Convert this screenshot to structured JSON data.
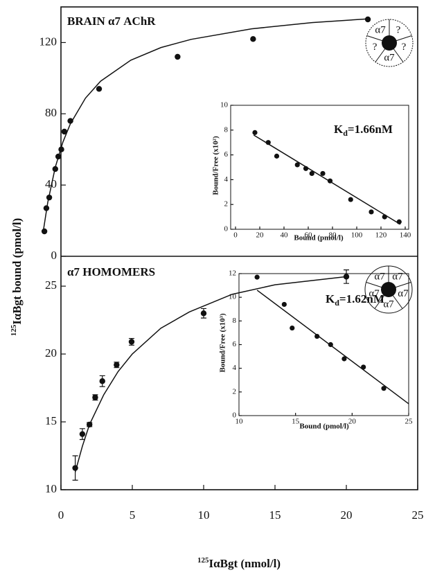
{
  "x_label": {
    "sup": "125",
    "text": "IαBgt (nmol/l)"
  },
  "y_label": {
    "sup": "125",
    "text": "IαBgt bound (pmol/l)"
  },
  "chart_data": [
    {
      "type": "scatter",
      "title": "BRAIN α7 AChR",
      "subunits": [
        "α7",
        "?",
        "?",
        "α7",
        "?"
      ],
      "color": "#111111",
      "x": [
        0.28,
        0.41,
        0.6,
        1.0,
        1.2,
        1.4,
        1.6,
        2.0,
        3.9,
        9.1,
        14.1,
        21.7
      ],
      "y": [
        14,
        27,
        33,
        49,
        56,
        60,
        70,
        76,
        94,
        112,
        122,
        133
      ],
      "fit": {
        "x": [
          0.2,
          0.5,
          1,
          1.5,
          2,
          3,
          4,
          6,
          8,
          10,
          14,
          18,
          21.7
        ],
        "y": [
          13.8,
          30.2,
          50,
          64,
          74.4,
          88.8,
          98.3,
          110.1,
          117.2,
          121.8,
          127.7,
          131.2,
          133.3
        ]
      },
      "xlim": [
        0,
        25
      ],
      "ylim": [
        0,
        140
      ],
      "yticks": [
        0,
        40,
        80,
        120
      ]
    },
    {
      "type": "scatter",
      "annotation": [
        "K",
        "d",
        "=1.66nM"
      ],
      "x_label": "Bound (pmol/l)",
      "y_label": "Bound/Free (x10²)",
      "color": "#111111",
      "x": [
        16,
        27,
        34,
        51,
        58,
        63,
        72,
        78,
        95,
        112,
        123,
        135
      ],
      "y": [
        7.8,
        7.0,
        5.9,
        5.2,
        4.9,
        4.5,
        4.5,
        3.9,
        2.4,
        1.4,
        1.0,
        0.6
      ],
      "fit": {
        "x": [
          15,
          136
        ],
        "y": [
          7.6,
          0.4
        ]
      },
      "xlim": [
        0,
        140
      ],
      "xticks": [
        0,
        20,
        40,
        60,
        80,
        100,
        120,
        140
      ],
      "ylim": [
        0,
        10
      ],
      "yticks": [
        0,
        2,
        4,
        6,
        8,
        10
      ]
    },
    {
      "type": "scatter",
      "title": "α7 HOMOMERS",
      "subunits": [
        "α7",
        "α7",
        "α7",
        "α7",
        "α7"
      ],
      "color": "#111111",
      "x": [
        1.0,
        1.5,
        2.0,
        2.4,
        2.9,
        3.9,
        4.95,
        10.0,
        20.0
      ],
      "y": [
        11.6,
        14.1,
        14.8,
        16.8,
        18.0,
        19.2,
        20.9,
        23.0,
        25.7
      ],
      "errors": [
        0.9,
        0.4,
        0.15,
        0.2,
        0.4,
        0.2,
        0.25,
        0.35,
        0.5
      ],
      "fit": {
        "x": [
          1,
          1.5,
          2,
          3,
          4,
          5,
          7,
          9,
          12,
          15,
          20
        ],
        "y": [
          11.3,
          13.2,
          14.8,
          17.0,
          18.7,
          20.0,
          21.9,
          23.1,
          24.4,
          25.1,
          25.7
        ]
      },
      "xlim": [
        0,
        25
      ],
      "xticks": [
        0,
        5,
        10,
        15,
        20,
        25
      ],
      "ylim": [
        10,
        27.2
      ],
      "yticks": [
        10,
        15,
        20,
        25
      ]
    },
    {
      "type": "scatter",
      "annotation": [
        "K",
        "d",
        "=1.62nM"
      ],
      "x_label": "Bound (pmol/l)",
      "y_label": "Bound/Free (x10³)",
      "color": "#111111",
      "x": [
        11.6,
        14.0,
        14.7,
        16.9,
        18.1,
        19.3,
        21.0,
        22.8
      ],
      "y": [
        11.7,
        9.4,
        7.4,
        6.7,
        6.0,
        4.8,
        4.1,
        2.3
      ],
      "fit": {
        "x": [
          11.6,
          25
        ],
        "y": [
          10.6,
          1.0
        ]
      },
      "xlim": [
        10,
        25
      ],
      "xticks": [
        10,
        15,
        20,
        25
      ],
      "ylim": [
        0,
        12
      ],
      "yticks": [
        0,
        2,
        4,
        6,
        8,
        10,
        12
      ]
    }
  ]
}
